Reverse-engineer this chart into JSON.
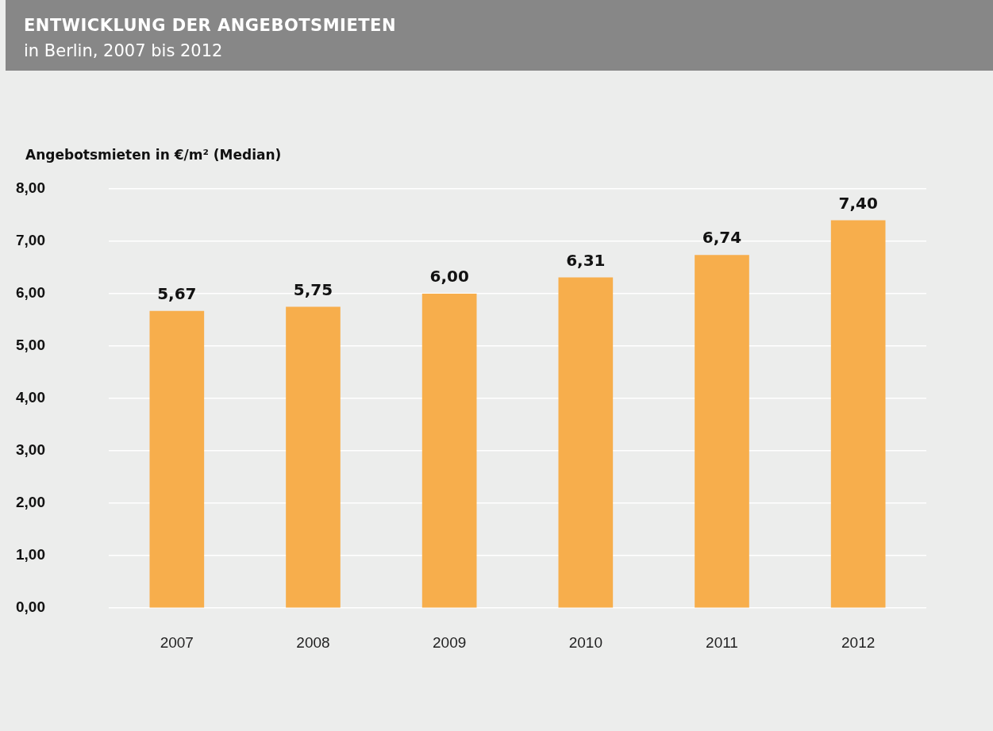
{
  "chart_data": {
    "type": "bar",
    "title": "ENTWICKLUNG DER ANGEBOTSMIETEN",
    "subtitle": "in Berlin, 2007 bis 2012",
    "ylabel": "Angebotsmieten in €/m² (Median)",
    "categories": [
      "2007",
      "2008",
      "2009",
      "2010",
      "2011",
      "2012"
    ],
    "values": [
      5.67,
      5.75,
      6.0,
      6.31,
      6.74,
      7.4
    ],
    "value_labels": [
      "5,67",
      "5,75",
      "6,00",
      "6,31",
      "6,74",
      "7,40"
    ],
    "color": "#f7ae4c",
    "ylim": [
      0,
      8
    ],
    "yticks": [
      {
        "value": 0,
        "label": "0,00"
      },
      {
        "value": 1,
        "label": "1,00"
      },
      {
        "value": 2,
        "label": "2,00"
      },
      {
        "value": 3,
        "label": "3,00"
      },
      {
        "value": 4,
        "label": "4,00"
      },
      {
        "value": 5,
        "label": "5,00"
      },
      {
        "value": 6,
        "label": "6,00"
      },
      {
        "value": 7,
        "label": "7,00"
      },
      {
        "value": 8,
        "label": "8,00"
      }
    ],
    "grid": "y",
    "legend": false
  }
}
